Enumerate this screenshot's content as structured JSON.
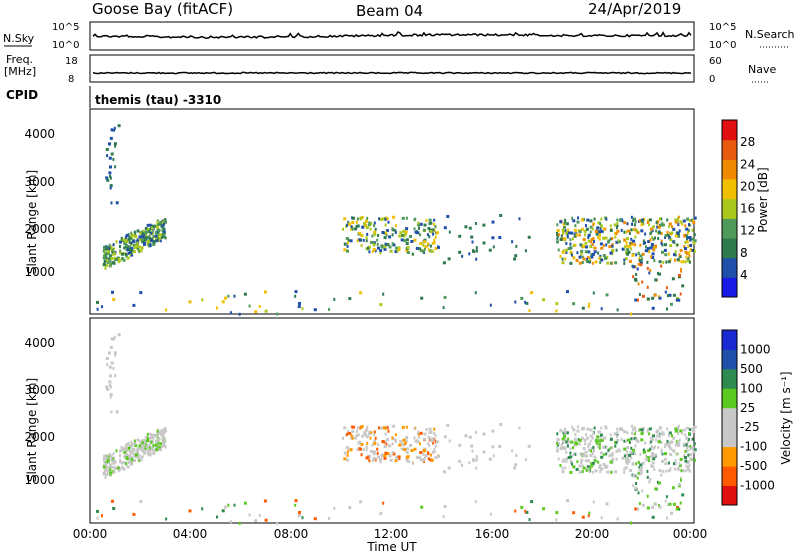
{
  "header": {
    "station": "Goose Bay (fitACF)",
    "beam": "Beam 04",
    "date": "24/Apr/2019"
  },
  "nsky": {
    "label": "N.Sky",
    "ticks_left": [
      "10^5",
      "10^0"
    ],
    "right_label": "N.Search",
    "ticks_right": [
      "10^5",
      "10^0"
    ]
  },
  "freq": {
    "label_line1": "Freq.",
    "label_line2": "[MHz]",
    "ticks_left": [
      "18",
      "8"
    ],
    "right_label": "Nave",
    "ticks_right": [
      "60",
      "0"
    ]
  },
  "cpid": {
    "label": "CPID",
    "text": "themis (tau) -3310"
  },
  "x_axis": {
    "label": "Time UT",
    "ticks": [
      "00:00",
      "04:00",
      "08:00",
      "12:00",
      "16:00",
      "20:00",
      "00:00"
    ]
  },
  "colors": {
    "power": [
      "#1a1ae6",
      "#1f4fa8",
      "#2e7a4e",
      "#4f9a5a",
      "#aac81e",
      "#f0c000",
      "#f08a00",
      "#e85a10",
      "#e01010"
    ],
    "velocity": [
      "#e01010",
      "#ff5a00",
      "#ff9a00",
      "#c8c8c8",
      "#c8c8c8",
      "#5ac81e",
      "#2e8a50",
      "#1f4fa8",
      "#1a2ad0"
    ]
  },
  "chart_data": [
    {
      "type": "heatmap",
      "name": "power",
      "ylabel": "Slant Range [km]",
      "yticks": [
        "4000",
        "3000",
        "2000",
        "1000"
      ],
      "ylim": [
        180,
        4600
      ],
      "xlim_hours": [
        0,
        24
      ],
      "colorbar_label": "Power [dB]",
      "colorbar_ticks": [
        "28",
        "24",
        "20",
        "16",
        "12",
        "8",
        "4"
      ],
      "regions": [
        {
          "hours": [
            0.5,
            3.0
          ],
          "range": [
            1250,
            2200
          ],
          "level": "low-mid"
        },
        {
          "hours": [
            10.0,
            13.8
          ],
          "range": [
            1500,
            2300
          ],
          "level": "low-mid"
        },
        {
          "hours": [
            18.5,
            24.0
          ],
          "range": [
            1300,
            2300
          ],
          "level": "mid"
        }
      ]
    },
    {
      "type": "heatmap",
      "name": "velocity",
      "ylabel": "Slant Range [km]",
      "yticks": [
        "4000",
        "3000",
        "2000",
        "1000"
      ],
      "ylim": [
        180,
        4600
      ],
      "xlim_hours": [
        0,
        24
      ],
      "colorbar_label": "Velocity [m s⁻¹]",
      "colorbar_ticks": [
        "1000",
        "500",
        "100",
        "25",
        "-25",
        "-100",
        "-500",
        "-1000"
      ],
      "regions": [
        {
          "hours": [
            0.5,
            3.0
          ],
          "range": [
            1250,
            2200
          ],
          "level": "near-zero"
        },
        {
          "hours": [
            10.0,
            13.8
          ],
          "range": [
            1500,
            2300
          ],
          "level": "negative"
        },
        {
          "hours": [
            18.5,
            24.0
          ],
          "range": [
            1300,
            2300
          ],
          "level": "near-zero"
        }
      ]
    }
  ]
}
